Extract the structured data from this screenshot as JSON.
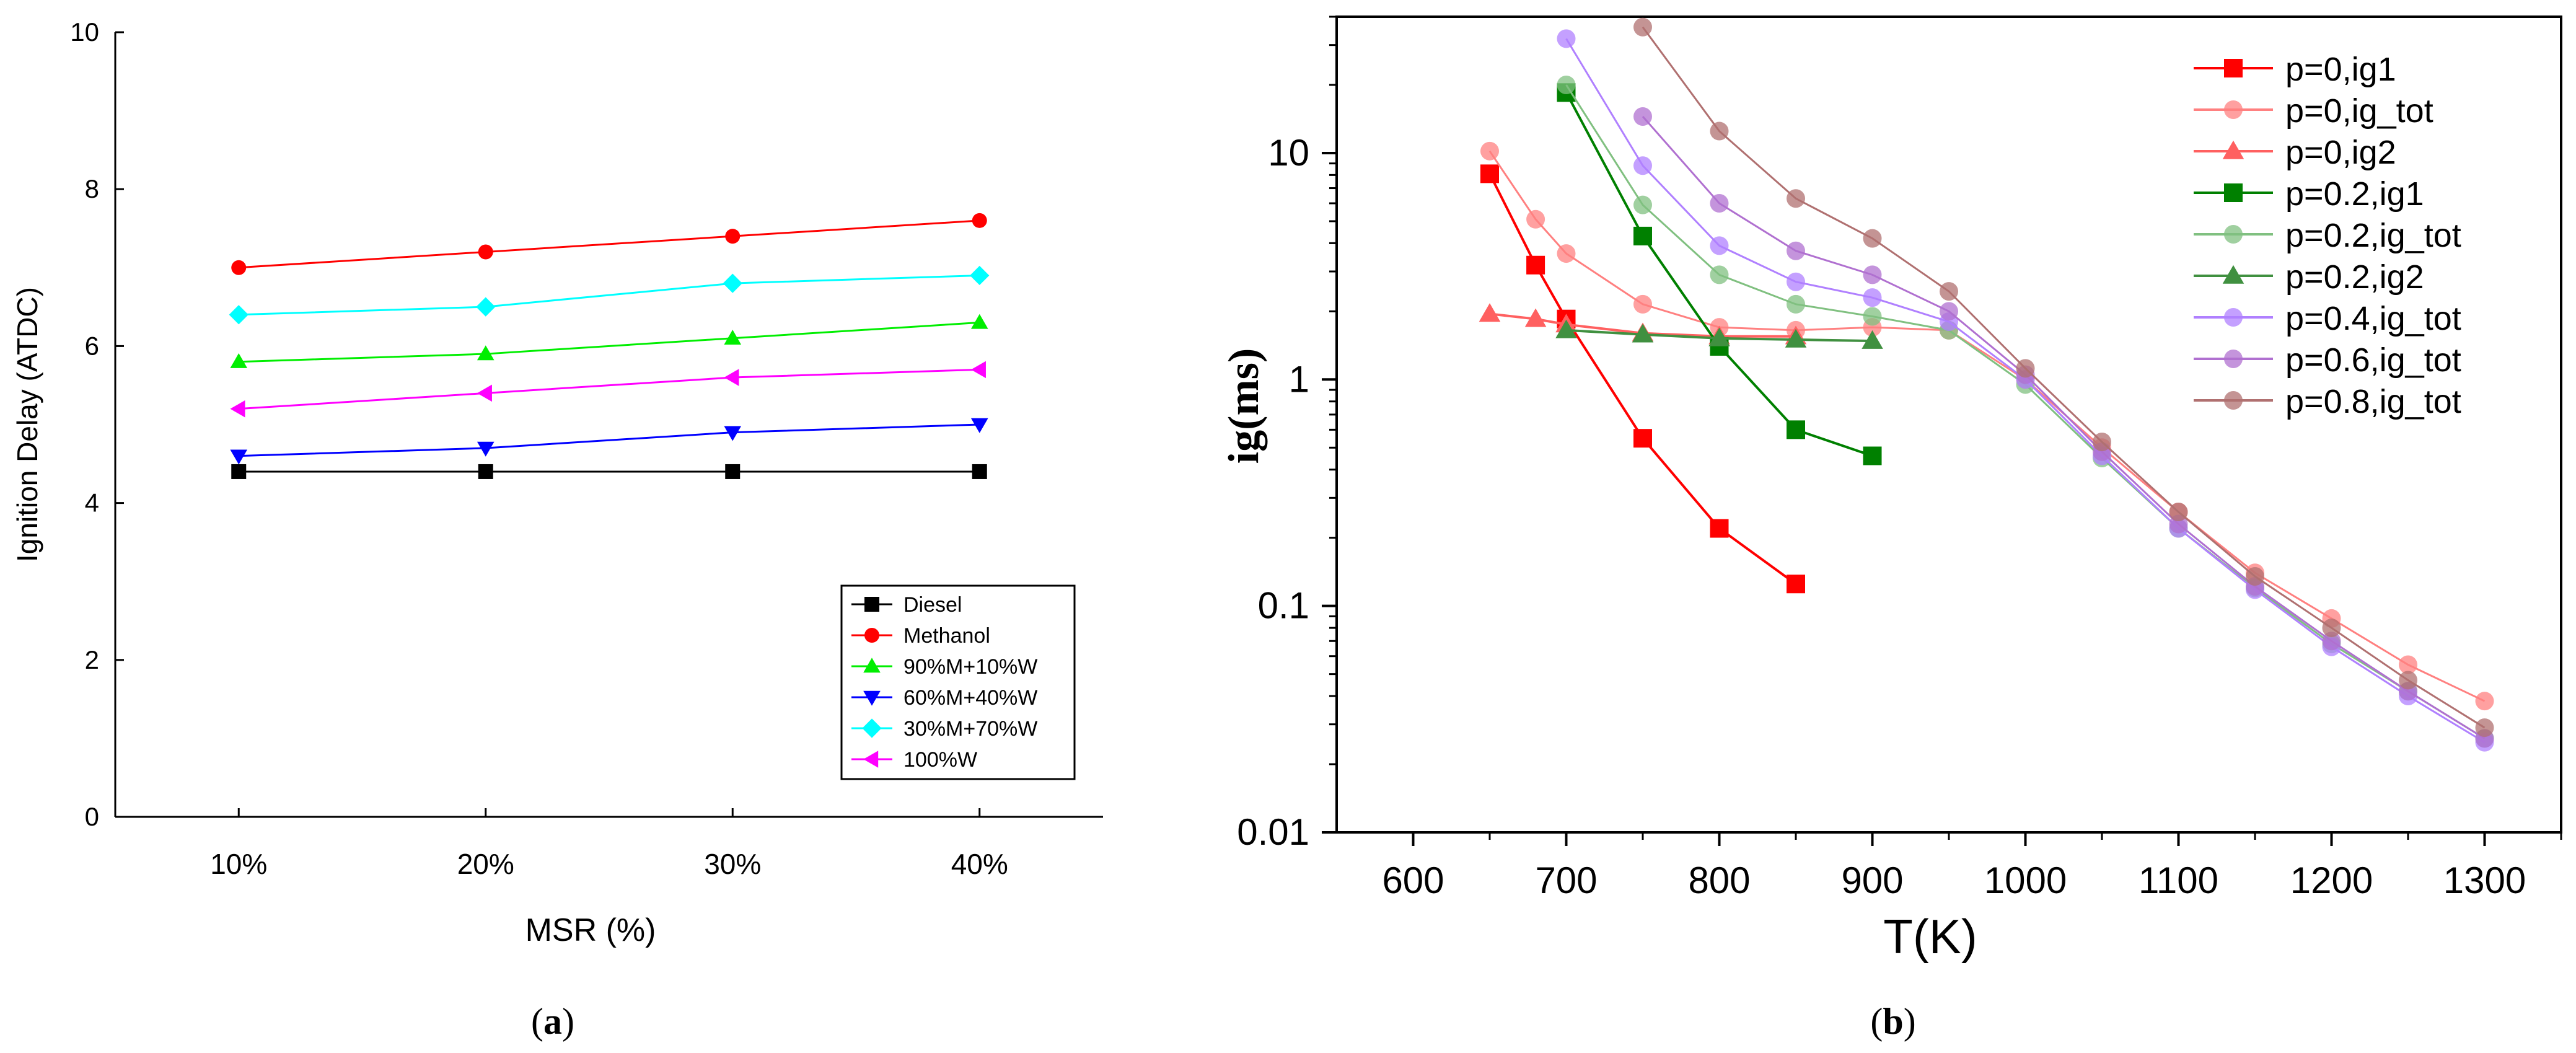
{
  "chart_data": [
    {
      "type": "line",
      "panel_label": "a",
      "xlabel": "MSR (%)",
      "ylabel": "Ignition Delay (ATDC)",
      "categories": [
        "10%",
        "20%",
        "30%",
        "40%"
      ],
      "x": [
        10,
        20,
        30,
        40
      ],
      "xlim": [
        5,
        45
      ],
      "ylim": [
        0,
        10
      ],
      "yticks": [
        "0",
        "2",
        "4",
        "6",
        "8",
        "10"
      ],
      "grid": false,
      "legend_position": "bottom-right",
      "series": [
        {
          "name": "Diesel",
          "color": "#000000",
          "marker": "square",
          "values": [
            4.4,
            4.4,
            4.4,
            4.4
          ]
        },
        {
          "name": "Methanol",
          "color": "#ff0000",
          "marker": "circle",
          "values": [
            7.0,
            7.2,
            7.4,
            7.6
          ]
        },
        {
          "name": "90%M+10%W",
          "color": "#00ee00",
          "marker": "triangle-up",
          "values": [
            5.8,
            5.9,
            6.1,
            6.3
          ]
        },
        {
          "name": "60%M+40%W",
          "color": "#0000ff",
          "marker": "triangle-down",
          "values": [
            4.6,
            4.7,
            4.9,
            5.0
          ]
        },
        {
          "name": "30%M+70%W",
          "color": "#00ffff",
          "marker": "diamond",
          "values": [
            6.4,
            6.5,
            6.8,
            6.9
          ]
        },
        {
          "name": "100%W",
          "color": "#ff00ff",
          "marker": "triangle-left",
          "values": [
            5.2,
            5.4,
            5.6,
            5.7
          ]
        }
      ]
    },
    {
      "type": "line",
      "panel_label": "b",
      "xlabel": "T(K)",
      "ylabel": "ig(ms)",
      "yscale": "log",
      "xlim": [
        550,
        1350
      ],
      "ylim": [
        0.01,
        40
      ],
      "xticks": [
        "600",
        "700",
        "800",
        "900",
        "1000",
        "1100",
        "1200",
        "1300"
      ],
      "yticks": [
        "0.01",
        "0.1",
        "1",
        "10"
      ],
      "grid": false,
      "legend_position": "top-right",
      "series": [
        {
          "name": "p=0,ig1",
          "color": "#ff0000",
          "marker": "square",
          "x": [
            650,
            680,
            700,
            750,
            800,
            850
          ],
          "values": [
            8.1,
            3.2,
            1.85,
            0.55,
            0.22,
            0.125
          ]
        },
        {
          "name": "p=0,ig_tot",
          "color": "#ff8080",
          "marker": "circle",
          "x": [
            650,
            680,
            700,
            750,
            800,
            850,
            900,
            950,
            1000,
            1050,
            1100,
            1150,
            1200,
            1250,
            1300
          ],
          "values": [
            10.2,
            5.1,
            3.6,
            2.15,
            1.7,
            1.65,
            1.7,
            1.65,
            1.0,
            0.5,
            0.26,
            0.14,
            0.088,
            0.055,
            0.038
          ]
        },
        {
          "name": "p=0,ig2",
          "color": "#ff6060",
          "marker": "triangle-up",
          "x": [
            650,
            680,
            700,
            750,
            800,
            850
          ],
          "values": [
            1.95,
            1.85,
            1.75,
            1.6,
            1.55,
            1.55
          ]
        },
        {
          "name": "p=0.2,ig1",
          "color": "#008000",
          "marker": "square",
          "x": [
            700,
            750,
            800,
            850,
            900
          ],
          "values": [
            18.5,
            4.3,
            1.4,
            0.6,
            0.46
          ]
        },
        {
          "name": "p=0.2,ig_tot",
          "color": "#80c080",
          "marker": "circle",
          "x": [
            700,
            750,
            800,
            850,
            900,
            950,
            1000,
            1050,
            1100,
            1150,
            1200,
            1250,
            1300
          ],
          "values": [
            20.0,
            5.9,
            2.9,
            2.15,
            1.9,
            1.65,
            0.95,
            0.45,
            0.22,
            0.12,
            0.068,
            0.042,
            0.026
          ]
        },
        {
          "name": "p=0.2,ig2",
          "color": "#409040",
          "marker": "triangle-up",
          "x": [
            700,
            750,
            800,
            850,
            900
          ],
          "values": [
            1.65,
            1.58,
            1.52,
            1.5,
            1.48
          ]
        },
        {
          "name": "p=0.4,ig_tot",
          "color": "#b080ff",
          "marker": "circle",
          "x": [
            700,
            750,
            800,
            850,
            900,
            950,
            1000,
            1050,
            1100,
            1150,
            1200,
            1250,
            1300
          ],
          "values": [
            32.0,
            8.8,
            3.9,
            2.7,
            2.3,
            1.8,
            1.0,
            0.46,
            0.22,
            0.118,
            0.066,
            0.04,
            0.025
          ]
        },
        {
          "name": "p=0.6,ig_tot",
          "color": "#b070d0",
          "marker": "circle",
          "x": [
            750,
            800,
            850,
            900,
            950,
            1000,
            1050,
            1100,
            1150,
            1200,
            1250,
            1300
          ],
          "values": [
            14.5,
            6.0,
            3.7,
            2.9,
            2.0,
            1.05,
            0.48,
            0.23,
            0.122,
            0.07,
            0.042,
            0.026
          ]
        },
        {
          "name": "p=0.8,ig_tot",
          "color": "#b07070",
          "marker": "circle",
          "x": [
            750,
            800,
            850,
            900,
            950,
            1000,
            1050,
            1100,
            1150,
            1200,
            1250,
            1300
          ],
          "values": [
            36.0,
            12.5,
            6.3,
            4.2,
            2.45,
            1.12,
            0.53,
            0.26,
            0.135,
            0.08,
            0.047,
            0.029
          ]
        }
      ]
    }
  ]
}
